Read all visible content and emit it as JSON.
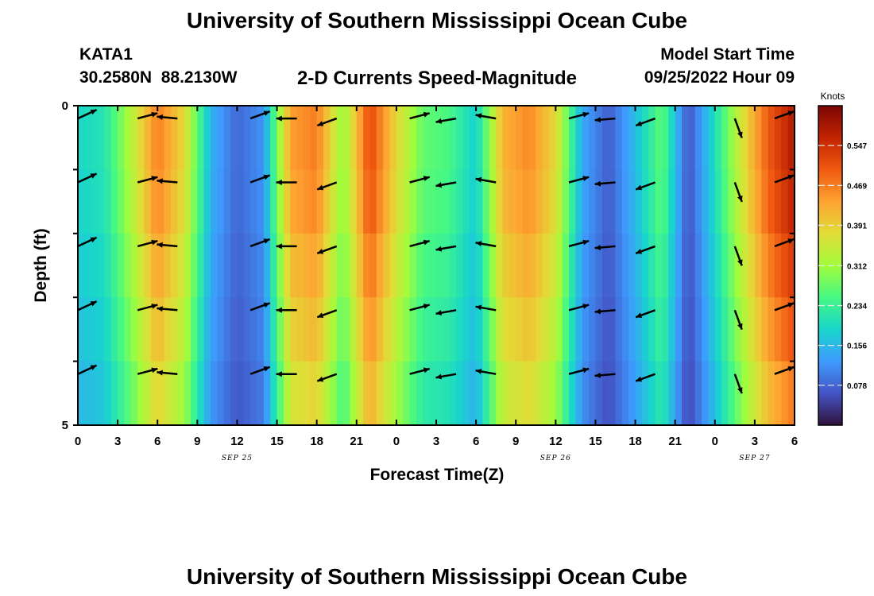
{
  "page": {
    "title": "University of Southern Mississippi Ocean Cube",
    "footer_title": "University of Southern Mississippi Ocean Cube",
    "station_id": "KATA1",
    "station_coords": "30.2580N  88.2130W",
    "subtitle": "2-D Currents Speed-Magnitude",
    "model_start_label": "Model Start Time",
    "model_start_value": "09/25/2022 Hour 09"
  },
  "chart_data": {
    "type": "heatmap",
    "title": "2-D Currents Speed-Magnitude",
    "xlabel": "Forecast Time(Z)",
    "ylabel": "Depth (ft)",
    "x_ticks": [
      "0",
      "3",
      "6",
      "9",
      "12",
      "15",
      "18",
      "21",
      "0",
      "3",
      "6",
      "9",
      "12",
      "15",
      "18",
      "21",
      "0",
      "3",
      "6"
    ],
    "y_ticks": [
      "0",
      "5"
    ],
    "date_labels": [
      {
        "label": "SEP 25",
        "x_hour": 12
      },
      {
        "label": "SEP 26",
        "x_hour": 36
      },
      {
        "label": "SEP 27",
        "x_hour": 51
      }
    ],
    "xlim_hours": [
      0,
      54
    ],
    "ylim_depth": [
      0,
      5
    ],
    "colorbar": {
      "unit": "Knots",
      "min": 0.0,
      "max": 0.625,
      "ticks": [
        "0.078",
        "0.156",
        "0.234",
        "0.312",
        "0.391",
        "0.469",
        "0.547"
      ],
      "colors": [
        "#30123b",
        "#4454c4",
        "#3e9bfe",
        "#18d6cb",
        "#46f884",
        "#a2fc3c",
        "#e1dd37",
        "#fea331",
        "#ef5911",
        "#c22402",
        "#7a0403"
      ]
    },
    "time_hours": [
      0,
      2,
      4,
      6,
      8,
      10,
      12,
      14,
      16,
      18,
      20,
      22,
      24,
      26,
      28,
      30,
      32,
      34,
      36,
      38,
      40,
      42,
      44,
      46,
      48,
      50,
      52,
      54
    ],
    "speed_profile_knots": [
      0.19,
      0.21,
      0.33,
      0.47,
      0.38,
      0.15,
      0.08,
      0.12,
      0.44,
      0.47,
      0.3,
      0.52,
      0.38,
      0.27,
      0.25,
      0.18,
      0.42,
      0.46,
      0.38,
      0.14,
      0.07,
      0.16,
      0.27,
      0.06,
      0.2,
      0.36,
      0.5,
      0.58
    ],
    "depth_profile_factor": [
      1.0,
      0.98,
      0.93,
      0.88,
      0.82
    ],
    "arrows": {
      "times": [
        0,
        4.5,
        7.5,
        13,
        16.5,
        19.5,
        25,
        28.5,
        31.5,
        37,
        40.5,
        43.5,
        49.5,
        52.5
      ],
      "depths": [
        0.2,
        1.2,
        2.2,
        3.2,
        4.2
      ],
      "directions_deg": [
        25,
        15,
        175,
        20,
        180,
        200,
        15,
        190,
        170,
        15,
        185,
        200,
        290,
        20
      ]
    }
  }
}
